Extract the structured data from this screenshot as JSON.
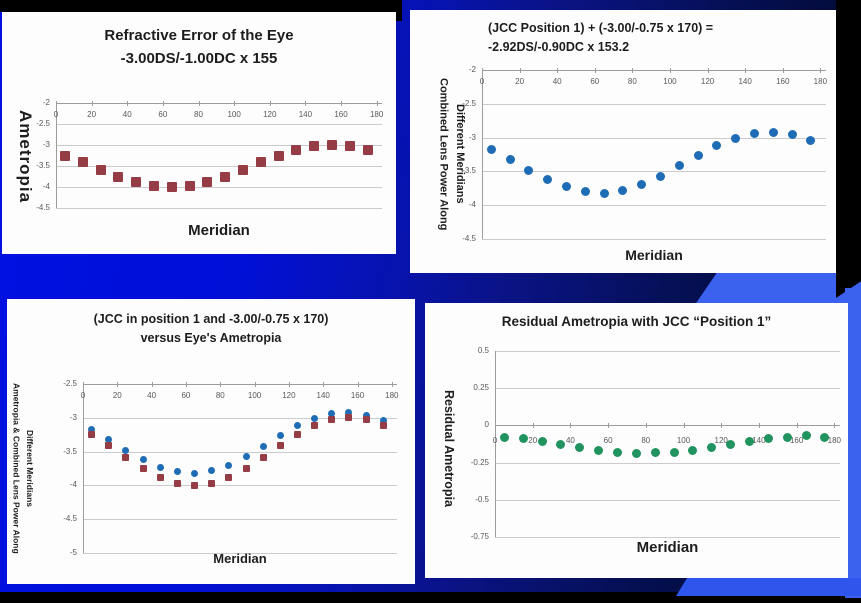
{
  "slide": {
    "colors": {
      "background_left": "#0011e2",
      "background_right": "#01051c",
      "accent_band": "#3b61ef",
      "panel": "#fdfdfd",
      "marker_red": "#963c44",
      "marker_blue": "#1e6cb5",
      "marker_green": "#21935e"
    }
  },
  "chart_data": [
    {
      "type": "scatter",
      "title_lines": [
        "Refractive Error of the Eye",
        "-3.00DS/-1.00DC x 155"
      ],
      "ylabel_lines": [
        "Ametropia"
      ],
      "xlabel": "Meridian",
      "ylim": [
        -4.5,
        -2
      ],
      "xlim": [
        0,
        183
      ],
      "cross_y": -2,
      "ytick_values": [
        -2,
        -2.5,
        -3,
        -3.5,
        -4,
        -4.5
      ],
      "ytick_labels": [
        "-2",
        "-2.5",
        "-3",
        "-3.5",
        "-4",
        "-4.5"
      ],
      "xtick_values": [
        0,
        20,
        40,
        60,
        80,
        100,
        120,
        140,
        160,
        180
      ],
      "xtick_labels": [
        "0",
        "20",
        "40",
        "60",
        "80",
        "100",
        "120",
        "140",
        "160",
        "180"
      ],
      "grid": true,
      "legend": "none",
      "series": [
        {
          "name": "Eye ametropia",
          "marker": "square",
          "color": "#963c44",
          "x": [
            5,
            15,
            25,
            35,
            45,
            55,
            65,
            75,
            85,
            95,
            105,
            115,
            125,
            135,
            145,
            155,
            165,
            175
          ],
          "y": [
            -3.25,
            -3.41,
            -3.59,
            -3.75,
            -3.88,
            -3.97,
            -4.0,
            -3.97,
            -3.88,
            -3.75,
            -3.59,
            -3.41,
            -3.25,
            -3.12,
            -3.03,
            -3.0,
            -3.03,
            -3.12
          ]
        }
      ]
    },
    {
      "type": "scatter",
      "title_lines": [
        "(JCC Position 1) + (-3.00/-0.75 x 170) =",
        "-2.92DS/-0.90DC x 153.2"
      ],
      "ylabel_lines": [
        "Combined Lens Power Along",
        "Different Meridians"
      ],
      "xlabel": "Meridian",
      "ylim": [
        -4.5,
        -2
      ],
      "xlim": [
        0,
        183
      ],
      "cross_y": -2,
      "ytick_values": [
        -2,
        -2.5,
        -3,
        -3.5,
        -4,
        -4.5
      ],
      "ytick_labels": [
        "-2",
        "-2.5",
        "-3",
        "-3.5",
        "-4",
        "-4.5"
      ],
      "xtick_values": [
        0,
        20,
        40,
        60,
        80,
        100,
        120,
        140,
        160,
        180
      ],
      "xtick_labels": [
        "0",
        "20",
        "40",
        "60",
        "80",
        "100",
        "120",
        "140",
        "160",
        "180"
      ],
      "grid": true,
      "legend": "none",
      "series": [
        {
          "name": "Combined lens power",
          "marker": "circle",
          "color": "#1e6cb5",
          "x": [
            5,
            15,
            25,
            35,
            45,
            55,
            65,
            75,
            85,
            95,
            105,
            115,
            125,
            135,
            145,
            155,
            165,
            175
          ],
          "y": [
            -3.17,
            -3.32,
            -3.48,
            -3.62,
            -3.73,
            -3.8,
            -3.82,
            -3.78,
            -3.7,
            -3.57,
            -3.42,
            -3.26,
            -3.12,
            -3.01,
            -2.94,
            -2.92,
            -2.96,
            -3.04
          ]
        }
      ]
    },
    {
      "type": "scatter",
      "title_lines": [
        "(JCC in position 1 and -3.00/-0.75 x 170)",
        "versus Eye's Ametropia"
      ],
      "ylabel_lines": [
        "Ametropia & Combined Lens Power Along",
        "Different Meridians"
      ],
      "xlabel": "Meridian",
      "ylim": [
        -5,
        -2.5
      ],
      "xlim": [
        0,
        183
      ],
      "cross_y": -2.5,
      "ytick_values": [
        -2.5,
        -3,
        -3.5,
        -4,
        -4.5,
        -5
      ],
      "ytick_labels": [
        "-2.5",
        "-3",
        "-3.5",
        "-4",
        "-4.5",
        "-5"
      ],
      "xtick_values": [
        0,
        20,
        40,
        60,
        80,
        100,
        120,
        140,
        160,
        180
      ],
      "xtick_labels": [
        "0",
        "20",
        "40",
        "60",
        "80",
        "100",
        "120",
        "140",
        "160",
        "180"
      ],
      "grid": true,
      "legend": "none",
      "series": [
        {
          "name": "Combined lens power",
          "marker": "circle",
          "color": "#1e6cb5",
          "x": [
            5,
            15,
            25,
            35,
            45,
            55,
            65,
            75,
            85,
            95,
            105,
            115,
            125,
            135,
            145,
            155,
            165,
            175
          ],
          "y": [
            -3.17,
            -3.32,
            -3.48,
            -3.62,
            -3.73,
            -3.8,
            -3.82,
            -3.78,
            -3.7,
            -3.57,
            -3.42,
            -3.26,
            -3.12,
            -3.01,
            -2.94,
            -2.92,
            -2.96,
            -3.04
          ]
        },
        {
          "name": "Eye ametropia",
          "marker": "square",
          "color": "#963c44",
          "x": [
            5,
            15,
            25,
            35,
            45,
            55,
            65,
            75,
            85,
            95,
            105,
            115,
            125,
            135,
            145,
            155,
            165,
            175
          ],
          "y": [
            -3.25,
            -3.41,
            -3.59,
            -3.75,
            -3.88,
            -3.97,
            -4.0,
            -3.97,
            -3.88,
            -3.75,
            -3.59,
            -3.41,
            -3.25,
            -3.12,
            -3.03,
            -3.0,
            -3.03,
            -3.12
          ]
        }
      ]
    },
    {
      "type": "scatter",
      "title_lines": [
        "Residual Ametropia with JCC “Position 1”"
      ],
      "ylabel_lines": [
        "Residual Ametropia"
      ],
      "xlabel": "Meridian",
      "ylim": [
        -0.75,
        0.5
      ],
      "xlim": [
        0,
        183
      ],
      "cross_y": 0,
      "ytick_values": [
        0.5,
        0.25,
        0,
        -0.25,
        -0.5,
        -0.75
      ],
      "ytick_labels": [
        "0.5",
        "0.25",
        "0",
        "-0.25",
        "-0.5",
        "-0.75"
      ],
      "xtick_values": [
        0,
        20,
        40,
        60,
        80,
        100,
        120,
        140,
        160,
        180
      ],
      "xtick_labels": [
        "0",
        "20",
        "40",
        "60",
        "80",
        "100",
        "120",
        "140",
        "160",
        "180"
      ],
      "grid": true,
      "legend": "none",
      "series": [
        {
          "name": "Residual ametropia",
          "marker": "circle",
          "color": "#21935e",
          "x": [
            5,
            15,
            25,
            35,
            45,
            55,
            65,
            75,
            85,
            95,
            105,
            115,
            125,
            135,
            145,
            155,
            165,
            175
          ],
          "y": [
            -0.08,
            -0.09,
            -0.11,
            -0.13,
            -0.15,
            -0.17,
            -0.18,
            -0.19,
            -0.18,
            -0.18,
            -0.17,
            -0.15,
            -0.13,
            -0.11,
            -0.09,
            -0.08,
            -0.07,
            -0.08
          ]
        }
      ]
    }
  ]
}
